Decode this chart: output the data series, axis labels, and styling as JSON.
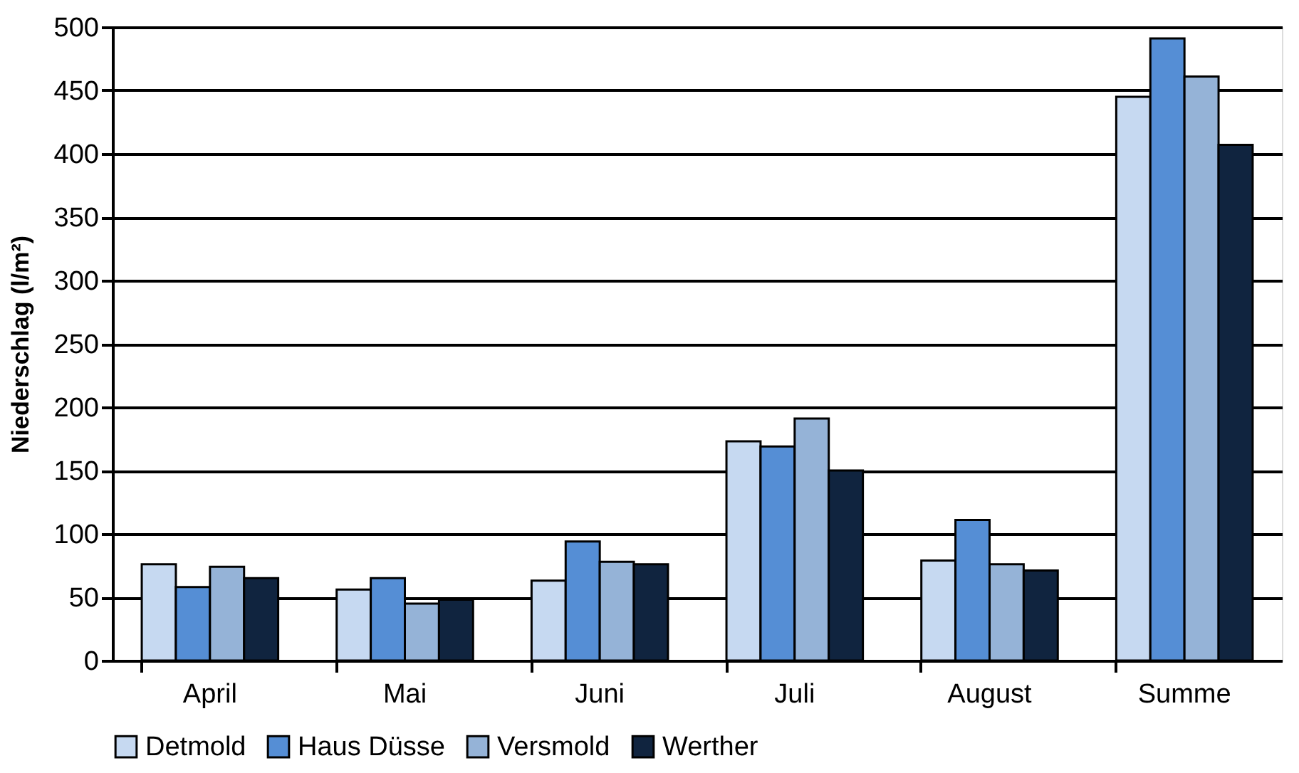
{
  "chart_data": {
    "type": "bar",
    "ylabel": "Niederschlag (l/m²)",
    "categories": [
      "April",
      "Mai",
      "Juni",
      "Juli",
      "August",
      "Summe"
    ],
    "series": [
      {
        "name": "Detmold",
        "color": "#c6d9f1",
        "values": [
          76,
          56,
          63,
          173,
          79,
          445
        ]
      },
      {
        "name": "Haus Düsse",
        "color": "#558ed5",
        "values": [
          58,
          65,
          94,
          169,
          111,
          491
        ]
      },
      {
        "name": "Versmold",
        "color": "#95b3d7",
        "values": [
          74,
          45,
          78,
          191,
          76,
          461
        ]
      },
      {
        "name": "Werther",
        "color": "#10243f",
        "values": [
          65,
          48,
          76,
          150,
          71,
          407
        ]
      }
    ],
    "ylim": [
      0,
      500
    ],
    "yticks": [
      0,
      50,
      100,
      150,
      200,
      250,
      300,
      350,
      400,
      450,
      500
    ],
    "grid": "y",
    "legend": "bottom"
  }
}
